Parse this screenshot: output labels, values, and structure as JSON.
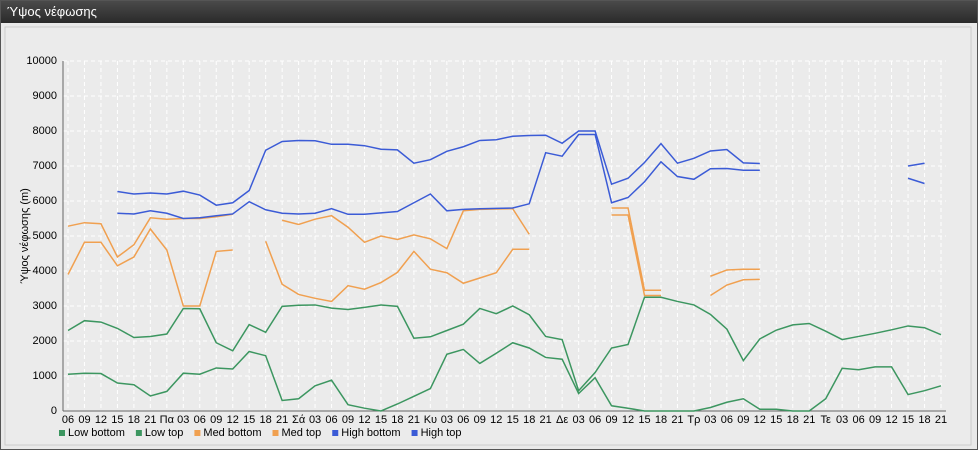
{
  "window_title": "Ύψος νέφωσης",
  "chart_data": {
    "type": "line",
    "y_label": "Ύψος νέφωσης (m)",
    "categories": [
      "06",
      "09",
      "12",
      "15",
      "18",
      "21",
      "Πα",
      "03",
      "06",
      "09",
      "12",
      "15",
      "18",
      "21",
      "Σά",
      "03",
      "06",
      "09",
      "12",
      "15",
      "18",
      "21",
      "Κυ",
      "03",
      "06",
      "09",
      "12",
      "15",
      "18",
      "21",
      "Δε",
      "03",
      "06",
      "09",
      "12",
      "15",
      "18",
      "21",
      "Τρ",
      "03",
      "06",
      "09",
      "12",
      "15",
      "18",
      "21",
      "Τε",
      "03",
      "06",
      "09",
      "12",
      "15",
      "18",
      "21"
    ],
    "ylim": [
      0,
      10000
    ],
    "yticks": [
      0,
      1000,
      2000,
      3000,
      4000,
      5000,
      6000,
      7000,
      8000,
      9000,
      10000
    ],
    "grid": true,
    "legend": "bottom",
    "series": [
      {
        "name": "Low bottom",
        "color": "#3c9660",
        "values": [
          1050,
          1080,
          1070,
          800,
          750,
          430,
          560,
          1080,
          1050,
          1230,
          1200,
          1700,
          1580,
          300,
          350,
          720,
          880,
          180,
          80,
          0,
          200,
          420,
          640,
          1620,
          1760,
          1360,
          1650,
          1950,
          1800,
          1530,
          1480,
          500,
          950,
          150,
          80,
          0,
          0,
          0,
          0,
          100,
          250,
          350,
          50,
          50,
          0,
          0,
          350,
          1220,
          1180,
          1260,
          1260,
          470,
          580,
          720
        ]
      },
      {
        "name": "Low top",
        "color": "#3c9660",
        "values": [
          2300,
          2580,
          2540,
          2360,
          2100,
          2130,
          2200,
          2930,
          2920,
          1950,
          1720,
          2470,
          2250,
          2990,
          3020,
          3030,
          2940,
          2900,
          2960,
          3030,
          2990,
          2080,
          2120,
          2300,
          2480,
          2930,
          2780,
          3000,
          2750,
          2130,
          2040,
          580,
          1100,
          1800,
          1900,
          3250,
          3250,
          3130,
          3030,
          2760,
          2340,
          1440,
          2060,
          2310,
          2460,
          2500,
          2280,
          2040,
          2130,
          2220,
          2320,
          2430,
          2380,
          2180
        ]
      },
      {
        "name": "Med bottom",
        "color": "#f0a050",
        "values": [
          3900,
          4820,
          4820,
          4150,
          4400,
          5200,
          4600,
          3000,
          3000,
          4560,
          4600,
          null,
          4850,
          3620,
          3330,
          3220,
          3130,
          3580,
          3480,
          3670,
          3960,
          4560,
          4050,
          3950,
          3650,
          3800,
          3950,
          4620,
          4620,
          null,
          null,
          null,
          null,
          5600,
          5600,
          3300,
          3300,
          null,
          null,
          3300,
          3600,
          3750,
          3760,
          null,
          null,
          null,
          null,
          null,
          null,
          null,
          null,
          null,
          null,
          null
        ]
      },
      {
        "name": "Med top",
        "color": "#f0a050",
        "values": [
          5280,
          5380,
          5350,
          4400,
          4750,
          5520,
          5480,
          5500,
          5500,
          5550,
          5620,
          null,
          null,
          5450,
          5330,
          5480,
          5580,
          5250,
          4820,
          5000,
          4900,
          5030,
          4920,
          4640,
          5720,
          5760,
          5770,
          5780,
          5050,
          null,
          null,
          null,
          null,
          5800,
          5800,
          3450,
          3450,
          null,
          null,
          3850,
          4030,
          4050,
          4050,
          null,
          null,
          null,
          null,
          null,
          null,
          null,
          null,
          null,
          null,
          null
        ]
      },
      {
        "name": "High bottom",
        "color": "#3b5bd6",
        "values": [
          null,
          null,
          null,
          5650,
          5630,
          5720,
          5650,
          5500,
          5520,
          5580,
          5630,
          5980,
          5750,
          5650,
          5630,
          5650,
          5780,
          5620,
          5620,
          5660,
          5700,
          5950,
          6200,
          5720,
          5760,
          5780,
          5790,
          5800,
          5920,
          7380,
          7280,
          7900,
          7900,
          5950,
          6100,
          6550,
          7120,
          6700,
          6620,
          6920,
          6930,
          6880,
          6880,
          null,
          null,
          null,
          null,
          null,
          null,
          null,
          null,
          6650,
          6500,
          null
        ]
      },
      {
        "name": "High top",
        "color": "#3b5bd6",
        "values": [
          null,
          null,
          null,
          6270,
          6200,
          6230,
          6200,
          6280,
          6170,
          5880,
          5950,
          6300,
          7450,
          7700,
          7730,
          7720,
          7620,
          7620,
          7580,
          7480,
          7460,
          7080,
          7180,
          7420,
          7550,
          7730,
          7750,
          7850,
          7870,
          7880,
          7650,
          8000,
          8000,
          6480,
          6650,
          7100,
          7640,
          7080,
          7220,
          7430,
          7470,
          7090,
          7070,
          null,
          null,
          null,
          null,
          null,
          null,
          null,
          null,
          7000,
          7080,
          null
        ]
      }
    ]
  }
}
